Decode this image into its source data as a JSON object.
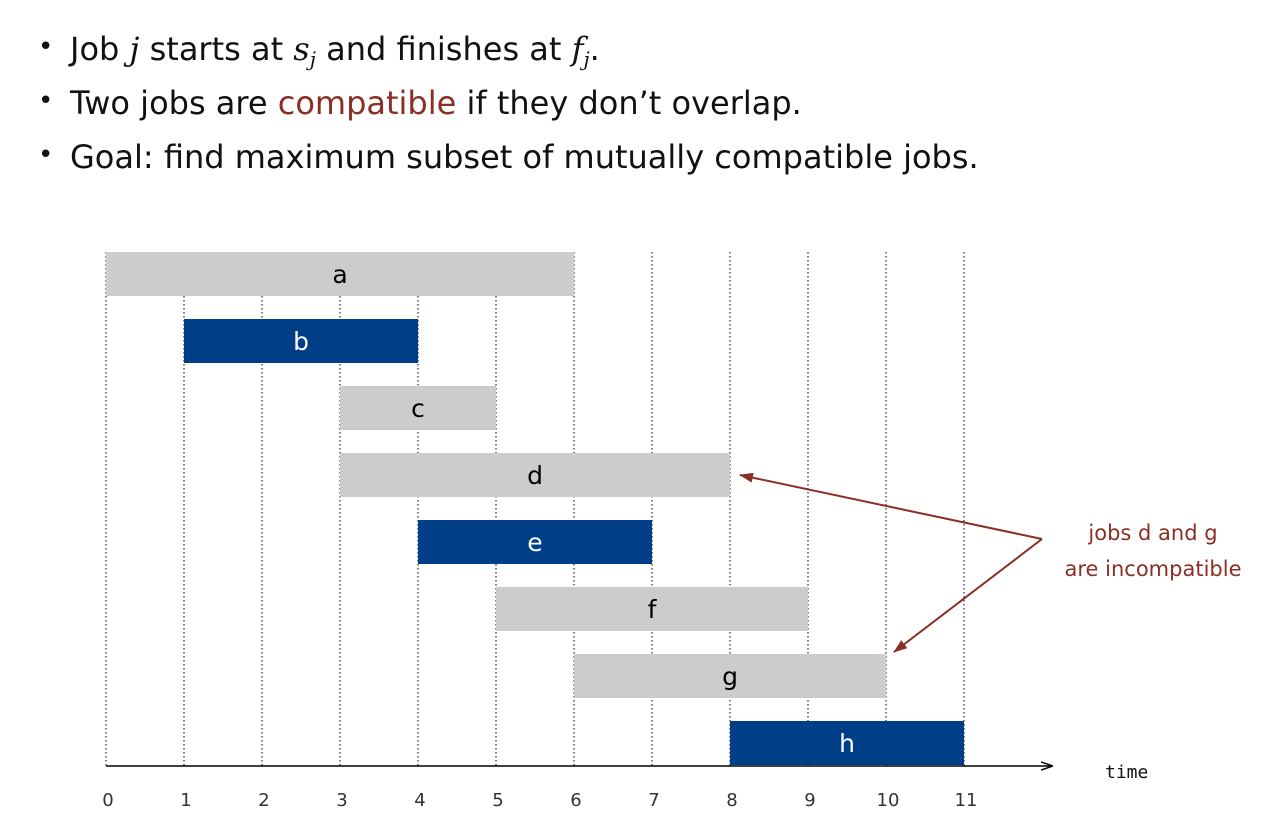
{
  "bullets": [
    {
      "before": "Job ",
      "var1": "j",
      "mid": " starts at ",
      "var2": "s",
      "sub2": "j",
      "mid2": " and finishes at ",
      "var3": "f",
      "sub3": "j",
      "end": "."
    },
    {
      "before": "Two jobs are ",
      "highlight": "compatible",
      "after": " if they don’t overlap."
    },
    {
      "text": "Goal: find maximum subset of mutually compatible jobs."
    }
  ],
  "chart_data": {
    "type": "gantt",
    "xlabel": "time",
    "xlim": [
      0,
      11
    ],
    "ticks": [
      0,
      1,
      2,
      3,
      4,
      5,
      6,
      7,
      8,
      9,
      10,
      11
    ],
    "jobs": [
      {
        "name": "a",
        "start": 0,
        "finish": 6,
        "selected": false
      },
      {
        "name": "b",
        "start": 1,
        "finish": 4,
        "selected": true
      },
      {
        "name": "c",
        "start": 3,
        "finish": 5,
        "selected": false
      },
      {
        "name": "d",
        "start": 3,
        "finish": 8,
        "selected": false
      },
      {
        "name": "e",
        "start": 4,
        "finish": 7,
        "selected": true
      },
      {
        "name": "f",
        "start": 5,
        "finish": 9,
        "selected": false
      },
      {
        "name": "g",
        "start": 6,
        "finish": 10,
        "selected": false
      },
      {
        "name": "h",
        "start": 8,
        "finish": 11,
        "selected": true
      }
    ],
    "annotation": {
      "lines": [
        "jobs d and g",
        "are incompatible"
      ],
      "targets": [
        "d",
        "g"
      ]
    },
    "colors": {
      "selected": "#003f87",
      "unselected": "#cccccc",
      "accent": "#8b2e24",
      "grid": "#000000"
    }
  }
}
